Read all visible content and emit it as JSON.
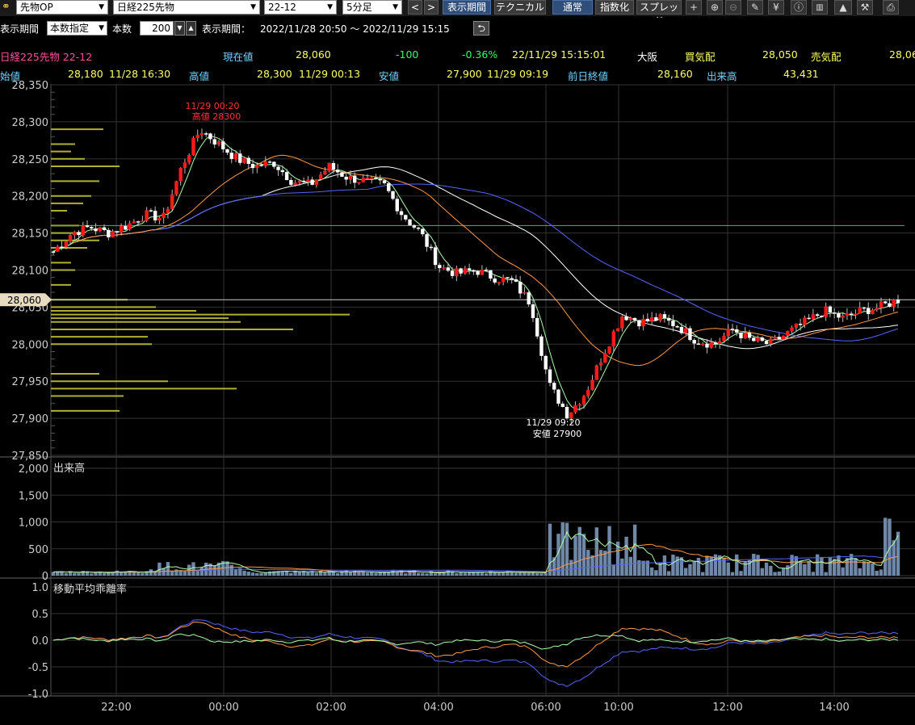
{
  "toolbar": {
    "type_select": "先物OP",
    "instrument_select": "日経225先物",
    "contract_select": "22-12",
    "interval_select": "5分足",
    "prev_label": "<",
    "next_label": ">",
    "period_btn": "表示期間",
    "tech_btn": "テクニカル",
    "normal_btn": "通常",
    "index_btn": "指数化",
    "spread_btn": "スプレッド",
    "icons": [
      "plus-icon",
      "zoom-in-icon",
      "zoom-out-icon",
      "pencil-icon",
      "yen-icon",
      "info-icon",
      "bar-chart-icon",
      "area-chart-icon",
      "wrench-icon",
      "print-icon"
    ]
  },
  "period_bar": {
    "label1": "表示期間",
    "mode_select": "本数指定",
    "count_label": "本数",
    "count_value": "200",
    "period_label": "表示期間：",
    "period_value": "2022/11/28 20:50 〜 2022/11/29 15:15"
  },
  "info": {
    "title": "日経225先物 22-12",
    "cur_label": "現在値",
    "cur_value": "28,060",
    "change": "-100",
    "change_pct": "-0.36%",
    "date_time": "22/11/29  15:15:01",
    "exchange": "大阪",
    "bid_label": "買気配",
    "bid_value": "28,050",
    "ask_label": "売気配",
    "ask_value": "28,06",
    "open_label": "始値",
    "open_value": "28,180",
    "open_time": "11/28  16:30",
    "high_label": "高値",
    "high_value": "28,300",
    "high_time": "11/29  00:13",
    "low_label": "安値",
    "low_value": "27,900",
    "low_time": "11/29  09:19",
    "prev_label": "前日終値",
    "prev_value": "28,160",
    "vol_label": "出来高",
    "vol_value": "43,431"
  },
  "chart_data": [
    {
      "type": "candlestick",
      "ylim": [
        27850,
        28350
      ],
      "yticks": [
        "28,350",
        "28,300",
        "28,250",
        "28,200",
        "28,150",
        "28,100",
        "28,050",
        "28,000",
        "27,950",
        "27,900",
        "27,850"
      ],
      "current_price_label": "28,060",
      "current_price": 28060,
      "prev_close": 28160,
      "high_annotation": [
        "11/29 00:20",
        "高値 28300"
      ],
      "low_annotation": [
        "11/29 09:20",
        "安値 27900"
      ],
      "xticks": [
        "22:00",
        "00:00",
        "02:00",
        "04:00",
        "06:00",
        "10:00",
        "12:00",
        "14:00"
      ],
      "close_path": [
        28125,
        28150,
        28158,
        28150,
        28160,
        28175,
        28170,
        28240,
        28290,
        28270,
        28250,
        28240,
        28245,
        28220,
        28215,
        28240,
        28225,
        28220,
        28215,
        28175,
        28150,
        28105,
        28095,
        28100,
        28090,
        28085,
        28055,
        27945,
        27905,
        27935,
        27990,
        28040,
        28030,
        28035,
        28025,
        28005,
        28000,
        28020,
        28005,
        28000,
        28015,
        28030,
        28045,
        28035,
        28045,
        28050,
        28060
      ],
      "volume_profile": [
        [
          28290,
          65
        ],
        [
          28270,
          30
        ],
        [
          28260,
          25
        ],
        [
          28250,
          42
        ],
        [
          28240,
          85
        ],
        [
          28220,
          60
        ],
        [
          28200,
          50
        ],
        [
          28190,
          40
        ],
        [
          28180,
          20
        ],
        [
          28160,
          35
        ],
        [
          28150,
          40
        ],
        [
          28140,
          60
        ],
        [
          28130,
          45
        ],
        [
          28110,
          25
        ],
        [
          28100,
          30
        ],
        [
          28080,
          25
        ],
        [
          28060,
          95
        ],
        [
          28050,
          130
        ],
        [
          28045,
          180
        ],
        [
          28040,
          370
        ],
        [
          28035,
          220
        ],
        [
          28030,
          235
        ],
        [
          28020,
          300
        ],
        [
          28010,
          120
        ],
        [
          28000,
          125
        ],
        [
          27960,
          60
        ],
        [
          27950,
          145
        ],
        [
          27940,
          230
        ],
        [
          27930,
          90
        ],
        [
          27910,
          85
        ]
      ]
    },
    {
      "type": "bar",
      "title": "出来高",
      "ylim": [
        0,
        2000
      ],
      "yticks": [
        "2,000",
        "1,500",
        "1,000",
        "500",
        "0"
      ]
    },
    {
      "type": "line",
      "title": "移動平均乖離率",
      "ylim": [
        -1.0,
        1.0
      ],
      "yticks": [
        "1.0",
        "0.5",
        "0.0",
        "-0.5",
        "-1.0"
      ]
    }
  ],
  "colors": {
    "up": "#ff1a1a",
    "down": "#ffffff",
    "ma_short": "#aaffaa",
    "ma_mid": "#ff9944",
    "ma_long": "#5566ff",
    "ma_white": "#ffffff",
    "prev_close": "#33cc33",
    "volume_bar": "#7088a8",
    "profile": "#b0b030"
  }
}
